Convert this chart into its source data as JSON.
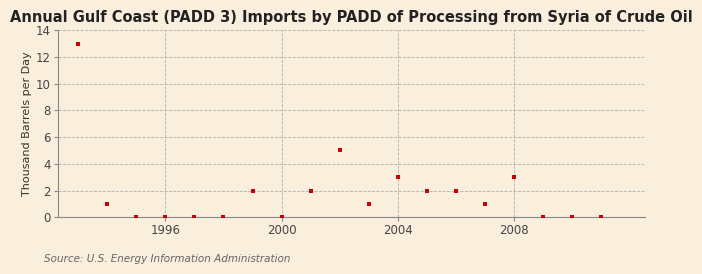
{
  "title": "Annual Gulf Coast (PADD 3) Imports by PADD of Processing from Syria of Crude Oil",
  "ylabel": "Thousand Barrels per Day",
  "source": "Source: U.S. Energy Information Administration",
  "background_color": "#faeedd",
  "plot_bg_color": "#faeedd",
  "marker_color": "#cc0000",
  "grid_color": "#aaaaaa",
  "spine_color": "#888888",
  "years": [
    1993,
    1994,
    1995,
    1996,
    1997,
    1998,
    1999,
    2000,
    2001,
    2002,
    2003,
    2004,
    2005,
    2006,
    2007,
    2008,
    2009,
    2010,
    2011
  ],
  "values": [
    13,
    1,
    0,
    0,
    0,
    0,
    2,
    0,
    2,
    5,
    1,
    3,
    2,
    2,
    1,
    3,
    0,
    0,
    0
  ],
  "ylim": [
    0,
    14
  ],
  "yticks": [
    0,
    2,
    4,
    6,
    8,
    10,
    12,
    14
  ],
  "xticks": [
    1996,
    2000,
    2004,
    2008
  ],
  "xlim": [
    1992.3,
    2012.5
  ],
  "title_fontsize": 10.5,
  "ylabel_fontsize": 8,
  "tick_fontsize": 8.5,
  "source_fontsize": 7.5
}
